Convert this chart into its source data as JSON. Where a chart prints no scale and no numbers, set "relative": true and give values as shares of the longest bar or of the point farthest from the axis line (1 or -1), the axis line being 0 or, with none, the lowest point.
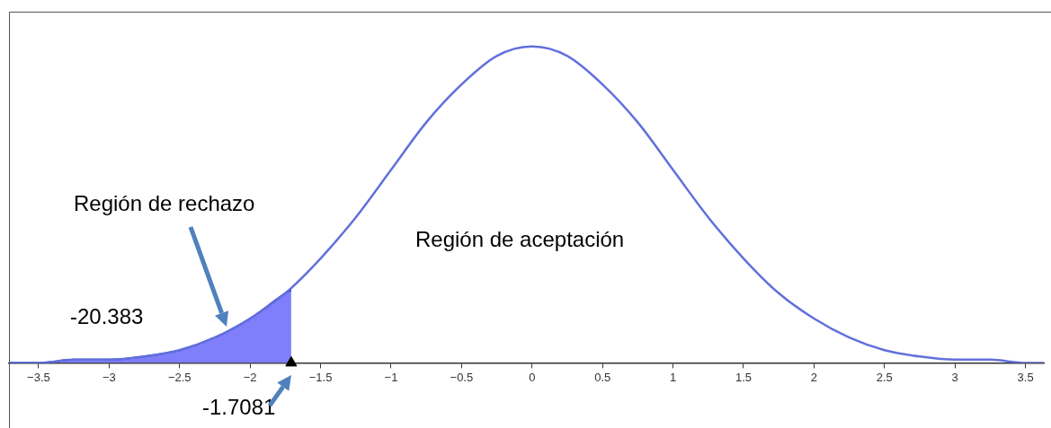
{
  "chart_data": {
    "type": "line",
    "relative": true,
    "xlim": [
      -3.71,
      3.63
    ],
    "xticks": [
      {
        "value": -3.5,
        "label": "−3.5"
      },
      {
        "value": -3,
        "label": "−3"
      },
      {
        "value": -2.5,
        "label": "−2.5"
      },
      {
        "value": -2,
        "label": "−2"
      },
      {
        "value": -1.5,
        "label": "−1.5"
      },
      {
        "value": -1,
        "label": "−1"
      },
      {
        "value": -0.5,
        "label": "−0.5"
      },
      0,
      0.5,
      1,
      1.5,
      2,
      2.5,
      3,
      3.5
    ],
    "grid": false,
    "legend": false,
    "tick_labels": "x",
    "marker": "none",
    "series": [
      {
        "type": "area",
        "color": "#7f7ffb",
        "x": [
          -3.71,
          -3.5,
          -3.25,
          -3,
          -2.75,
          -2.5,
          -2.25,
          -2,
          -1.75,
          -1.7081
        ],
        "values": [
          0,
          0,
          0.01,
          0.01,
          0.02,
          0.04,
          0.08,
          0.14,
          0.22,
          0.23
        ]
      },
      {
        "type": "line",
        "color": "#6270dc",
        "x": [
          -3.71,
          -3.5,
          -3.25,
          -3,
          -2.75,
          -2.5,
          -2.25,
          -2,
          -1.75,
          -1.5,
          -1.25,
          -1,
          -0.75,
          -0.5,
          -0.25,
          0,
          0.25,
          0.5,
          0.75,
          1,
          1.25,
          1.5,
          1.75,
          2,
          2.25,
          2.5,
          2.75,
          3,
          3.25,
          3.5,
          3.63
        ],
        "values": [
          0,
          0,
          0.01,
          0.01,
          0.02,
          0.04,
          0.08,
          0.14,
          0.22,
          0.33,
          0.46,
          0.61,
          0.76,
          0.88,
          0.97,
          1,
          0.97,
          0.88,
          0.76,
          0.61,
          0.46,
          0.33,
          0.22,
          0.14,
          0.08,
          0.04,
          0.02,
          0.01,
          0.01,
          0,
          0
        ]
      },
      {
        "type": "scatter",
        "color": "#000000",
        "marker": "triangle",
        "x": [
          -1.7081
        ],
        "values": [
          0
        ]
      }
    ],
    "annotations": [
      "Región de rechazo",
      "Región de aceptación",
      "-20.383",
      {
        "text": "-1.7081",
        "x": -1.7081,
        "y": 0
      }
    ]
  }
}
